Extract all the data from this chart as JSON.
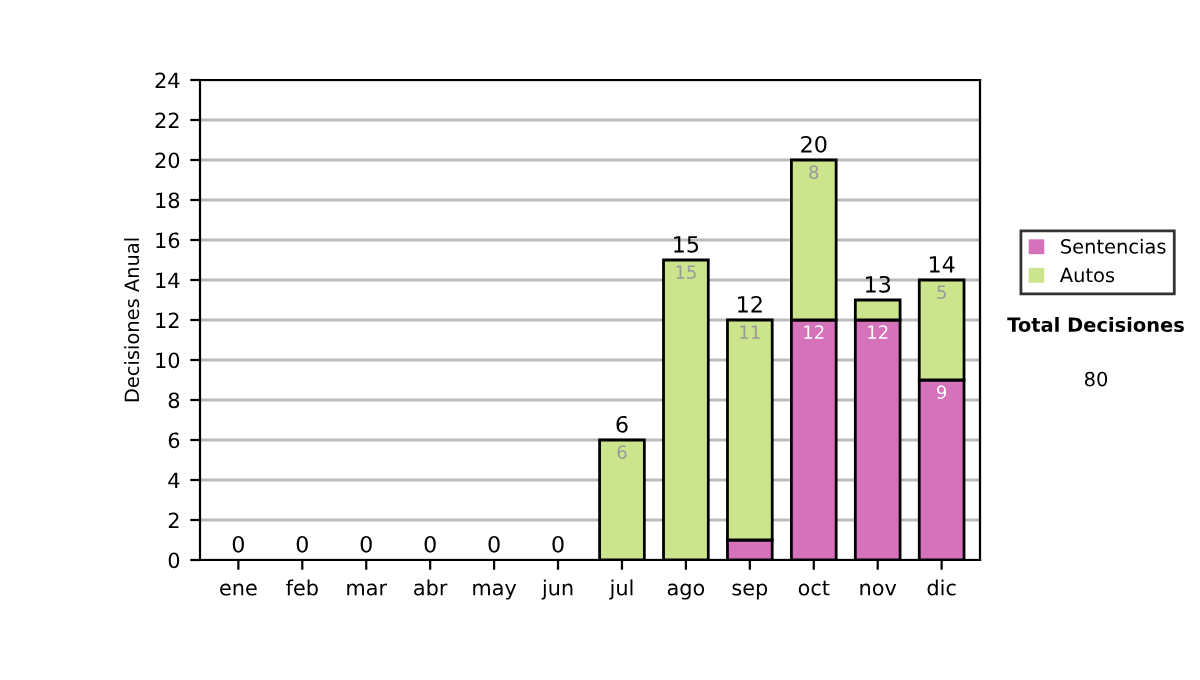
{
  "chart_data": {
    "type": "bar",
    "stacked": true,
    "ylabel": "Decisiones Anual",
    "categories": [
      "ene",
      "feb",
      "mar",
      "abr",
      "may",
      "jun",
      "jul",
      "ago",
      "sep",
      "oct",
      "nov",
      "dic"
    ],
    "series": [
      {
        "name": "Sentencias",
        "color": "#d672b9",
        "values": [
          0,
          0,
          0,
          0,
          0,
          0,
          0,
          0,
          1,
          12,
          12,
          9
        ],
        "value_labels": [
          null,
          null,
          null,
          null,
          null,
          null,
          null,
          null,
          null,
          "12",
          "12",
          "9"
        ]
      },
      {
        "name": "Autos",
        "color": "#cce48c",
        "values": [
          0,
          0,
          0,
          0,
          0,
          0,
          6,
          15,
          11,
          8,
          1,
          5
        ],
        "value_labels": [
          null,
          null,
          null,
          null,
          null,
          null,
          "6",
          "15",
          "11",
          "8",
          null,
          "5"
        ]
      }
    ],
    "totals": [
      "0",
      "0",
      "0",
      "0",
      "0",
      "0",
      "6",
      "15",
      "12",
      "20",
      "13",
      "14"
    ],
    "ylim": [
      0,
      24
    ],
    "yticks": [
      0,
      2,
      4,
      6,
      8,
      10,
      12,
      14,
      16,
      18,
      20,
      22,
      24
    ],
    "grid": "y",
    "legend": "right",
    "annotations": [
      "Total Decisiones",
      "80"
    ]
  }
}
